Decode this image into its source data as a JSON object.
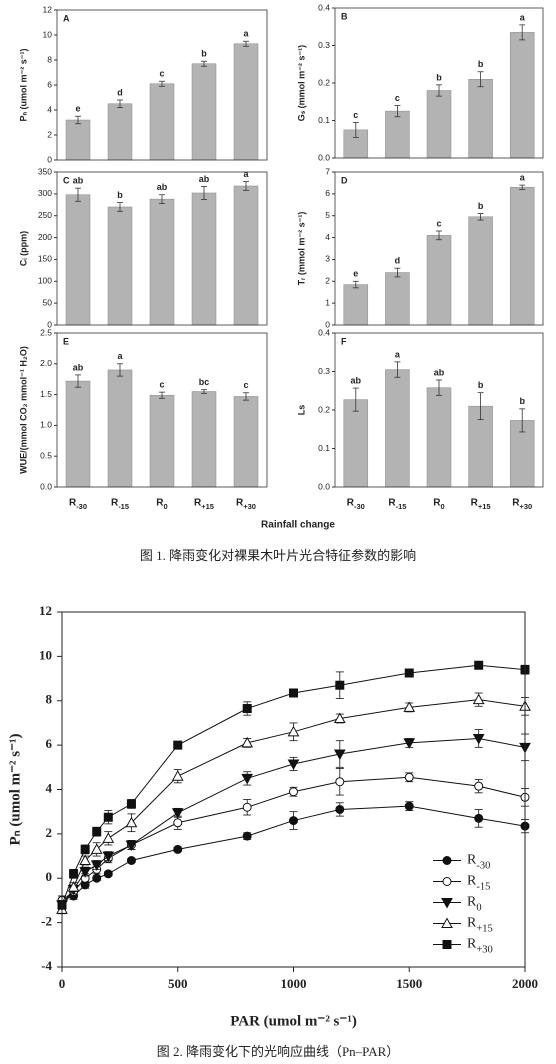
{
  "figure1": {
    "xlabel": "Rainfall change",
    "caption": "图 1. 降雨变化对裸果木叶片光合特征参数的影响"
  },
  "figure2": {
    "caption": "图 2. 降雨变化下的光响应曲线（Pn–PAR）"
  },
  "chart_data": [
    {
      "type": "bar",
      "label": "A",
      "ylabel": "Pₙ (umol m⁻² s⁻¹)",
      "values": [
        3.2,
        4.5,
        6.1,
        7.7,
        9.3
      ],
      "errors": [
        0.3,
        0.3,
        0.2,
        0.2,
        0.2
      ],
      "annotations": [
        "e",
        "d",
        "c",
        "b",
        "a"
      ],
      "ylim": [
        0,
        12
      ],
      "yticks": [
        0,
        2,
        4,
        6,
        8,
        10,
        12
      ],
      "color": "#b3b3b3"
    },
    {
      "type": "bar",
      "label": "B",
      "ylabel": "Gₛ (mmol m⁻² s⁻¹)",
      "values": [
        0.075,
        0.125,
        0.18,
        0.21,
        0.335
      ],
      "errors": [
        0.02,
        0.015,
        0.015,
        0.02,
        0.02
      ],
      "annotations": [
        "c",
        "c",
        "b",
        "b",
        "a"
      ],
      "ylim": [
        0,
        0.4
      ],
      "yticks": [
        {
          "value": 0,
          "label": "0.0"
        },
        0.1,
        0.2,
        0.3,
        0.4
      ],
      "color": "#b3b3b3"
    },
    {
      "type": "bar",
      "label": "C",
      "ylabel": "Cᵢ (ppm)",
      "values": [
        298,
        270,
        288,
        302,
        318
      ],
      "errors": [
        15,
        10,
        10,
        15,
        10
      ],
      "annotations": [
        "ab",
        "b",
        "ab",
        "ab",
        "a"
      ],
      "ylim": [
        0,
        350
      ],
      "yticks": [
        0,
        50,
        100,
        150,
        200,
        250,
        300,
        350
      ],
      "color": "#b3b3b3"
    },
    {
      "type": "bar",
      "label": "D",
      "ylabel": "Tᵣ (mmol m⁻² s⁻¹)",
      "values": [
        1.85,
        2.4,
        4.1,
        4.95,
        6.3
      ],
      "errors": [
        0.15,
        0.2,
        0.2,
        0.15,
        0.1
      ],
      "annotations": [
        "e",
        "d",
        "c",
        "b",
        "a"
      ],
      "ylim": [
        0,
        7
      ],
      "yticks": [
        0,
        1,
        2,
        3,
        4,
        5,
        6,
        7
      ],
      "color": "#b3b3b3"
    },
    {
      "type": "bar",
      "label": "E",
      "ylabel": "WUE/(mmol CO₂ mmol⁻¹ H₂O)",
      "categories": [
        "R-30",
        "R-15",
        "R0",
        "R+15",
        "R+30"
      ],
      "values": [
        1.72,
        1.9,
        1.49,
        1.55,
        1.47
      ],
      "errors": [
        0.1,
        0.1,
        0.05,
        0.03,
        0.06
      ],
      "annotations": [
        "ab",
        "a",
        "c",
        "bc",
        "c"
      ],
      "ylim": [
        0,
        2.5
      ],
      "yticks": [
        {
          "value": 0,
          "label": "0.0"
        },
        0.5,
        {
          "value": 1,
          "label": "1.0"
        },
        1.5,
        {
          "value": 2,
          "label": "2.0"
        },
        2.5
      ],
      "color": "#b3b3b3"
    },
    {
      "type": "bar",
      "label": "F",
      "ylabel": "Ls",
      "categories": [
        "R-30",
        "R-15",
        "R0",
        "R+15",
        "R+30"
      ],
      "values": [
        0.227,
        0.305,
        0.258,
        0.21,
        0.173
      ],
      "errors": [
        0.03,
        0.02,
        0.02,
        0.035,
        0.03
      ],
      "annotations": [
        "ab",
        "a",
        "ab",
        "b",
        "b"
      ],
      "ylim": [
        0,
        0.4
      ],
      "yticks": [
        {
          "value": 0,
          "label": "0.0"
        },
        0.1,
        0.2,
        0.3,
        0.4
      ],
      "color": "#b3b3b3"
    },
    {
      "type": "line",
      "xlabel": "PAR (umol m⁻² s⁻¹)",
      "ylabel": "Pₙ (umol m⁻² s⁻¹)",
      "x": [
        0,
        50,
        100,
        150,
        200,
        300,
        500,
        800,
        1000,
        1200,
        1500,
        1800,
        2000
      ],
      "xlim": [
        0,
        2000
      ],
      "xticks": [
        0,
        500,
        1000,
        1500,
        2000
      ],
      "ylim": [
        -4,
        12
      ],
      "yticks": [
        -4,
        -2,
        0,
        2,
        4,
        6,
        8,
        10,
        12
      ],
      "legend": "lower right",
      "series": [
        {
          "name": "R-30",
          "color": "#111111",
          "marker": "circle",
          "filled": true,
          "values": [
            -1.0,
            -0.8,
            -0.3,
            0.0,
            0.2,
            0.8,
            1.3,
            1.9,
            2.6,
            3.1,
            3.25,
            2.7,
            2.35
          ],
          "errors": [
            0.2,
            0.15,
            0.15,
            0.1,
            0.1,
            0.1,
            0.1,
            0.15,
            0.4,
            0.3,
            0.2,
            0.4,
            0.3
          ]
        },
        {
          "name": "R-15",
          "color": "#111111",
          "marker": "circle",
          "filled": false,
          "values": [
            -1.0,
            -0.6,
            0.0,
            0.4,
            0.9,
            1.5,
            2.5,
            3.2,
            3.9,
            4.35,
            4.55,
            4.15,
            3.65
          ],
          "errors": [
            0.2,
            0.2,
            0.2,
            0.2,
            0.2,
            0.2,
            0.3,
            0.35,
            0.2,
            0.6,
            0.2,
            0.3,
            0.4
          ]
        },
        {
          "name": "R0",
          "color": "#111111",
          "marker": "triangle-down",
          "filled": true,
          "values": [
            -1.2,
            -0.5,
            0.3,
            0.6,
            1.0,
            1.5,
            2.95,
            4.5,
            5.15,
            5.6,
            6.1,
            6.3,
            5.9
          ],
          "errors": [
            0.2,
            0.2,
            0.2,
            0.2,
            0.2,
            0.2,
            0.2,
            0.3,
            0.3,
            0.6,
            0.2,
            0.4,
            0.6
          ]
        },
        {
          "name": "R+15",
          "color": "#111111",
          "marker": "triangle-up",
          "filled": false,
          "values": [
            -1.4,
            -0.4,
            0.8,
            1.3,
            1.8,
            2.5,
            4.6,
            6.1,
            6.6,
            7.2,
            7.7,
            8.05,
            7.75
          ],
          "errors": [
            0.2,
            0.2,
            0.2,
            0.3,
            0.3,
            0.4,
            0.3,
            0.2,
            0.4,
            0.2,
            0.2,
            0.3,
            0.4
          ]
        },
        {
          "name": "R+30",
          "color": "#111111",
          "marker": "square",
          "filled": true,
          "values": [
            -1.2,
            0.2,
            1.3,
            2.1,
            2.75,
            3.35,
            6.0,
            7.65,
            8.35,
            8.7,
            9.25,
            9.6,
            9.4
          ],
          "errors": [
            0.2,
            0.2,
            0.2,
            0.2,
            0.3,
            0.2,
            0.15,
            0.3,
            0.15,
            0.6,
            0.15,
            0.15,
            0.2
          ]
        }
      ]
    }
  ]
}
